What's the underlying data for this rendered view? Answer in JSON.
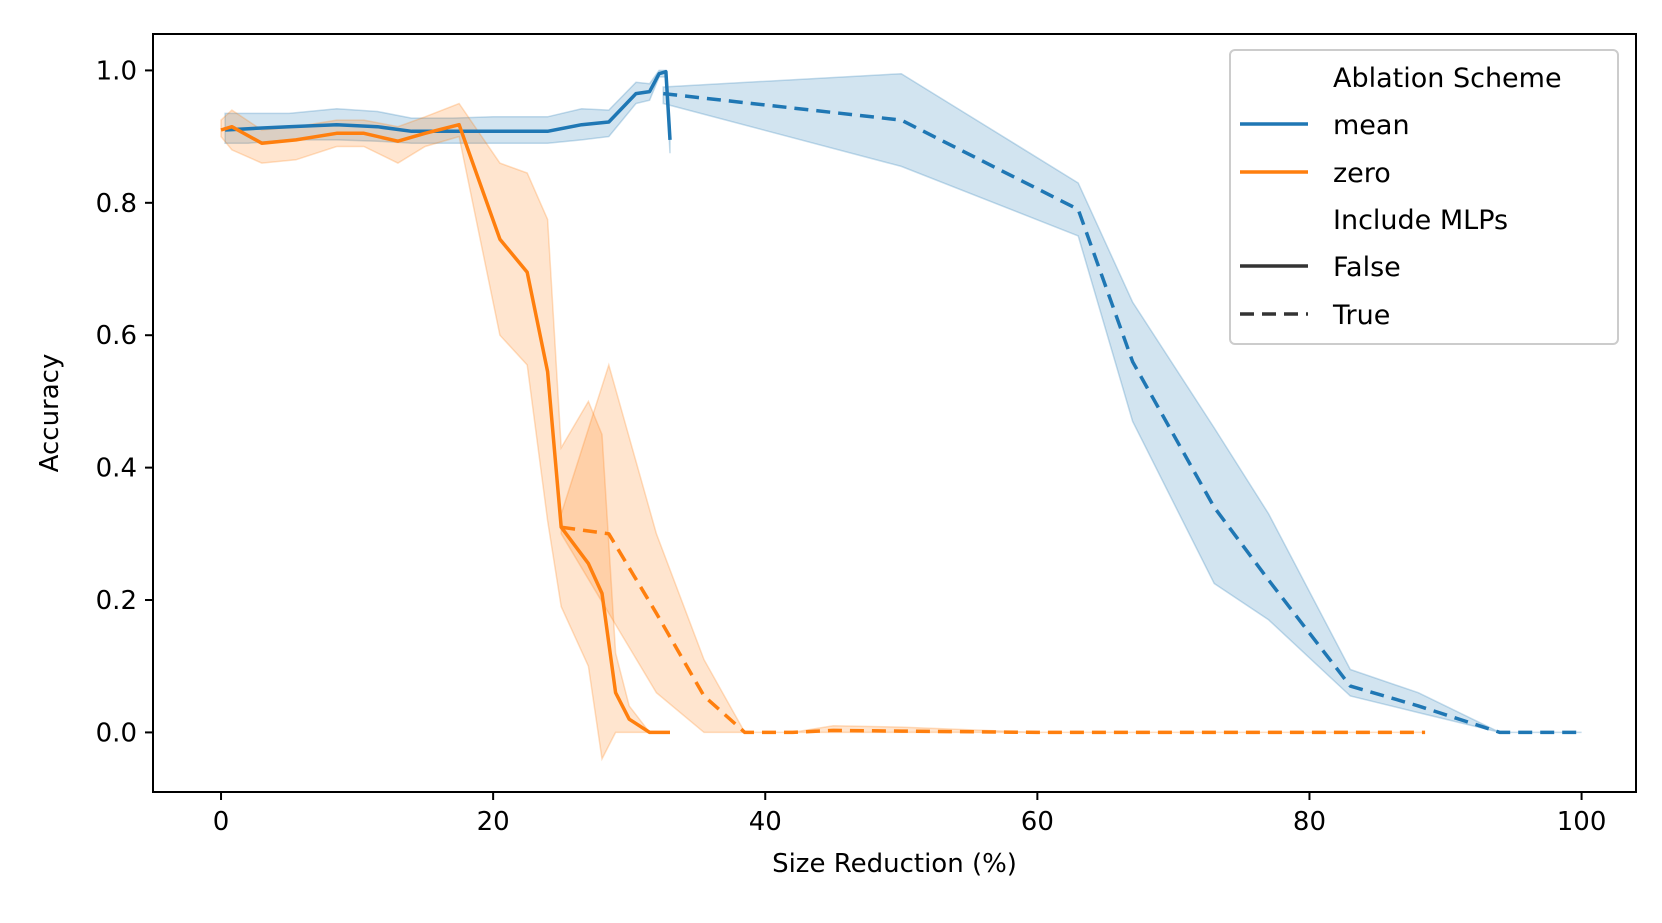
{
  "chart_data": {
    "type": "line",
    "title": "",
    "xlabel": "Size Reduction (%)",
    "ylabel": "Accuracy",
    "xlim": [
      -5,
      104
    ],
    "ylim": [
      -0.09,
      1.055
    ],
    "xticks": [
      0,
      20,
      40,
      60,
      80,
      100
    ],
    "xtick_labels": [
      "0",
      "20",
      "40",
      "60",
      "80",
      "100"
    ],
    "yticks": [
      0.0,
      0.2,
      0.4,
      0.6,
      0.8,
      1.0
    ],
    "ytick_labels": [
      "0.0",
      "0.2",
      "0.4",
      "0.6",
      "0.8",
      "1.0"
    ],
    "grid": false,
    "legend": {
      "position": "top-right",
      "hue_title": "Ablation Scheme",
      "style_title": "Include MLPs",
      "entries": [
        {
          "label": "mean",
          "color": "#1f77b4",
          "dash": "solid"
        },
        {
          "label": "zero",
          "color": "#ff7f0e",
          "dash": "solid"
        },
        {
          "label": "False",
          "color": "#333333",
          "dash": "solid"
        },
        {
          "label": "True",
          "color": "#333333",
          "dash": "dashed"
        }
      ]
    },
    "series": [
      {
        "name": "mean, Include MLPs = False",
        "color": "#1f77b4",
        "dash": "solid",
        "x": [
          0.3,
          2,
          5,
          8.5,
          11.5,
          14,
          17,
          20,
          24,
          26.5,
          28.5,
          30.5,
          31.5,
          32.2,
          32.7,
          33.0
        ],
        "y": [
          0.91,
          0.912,
          0.915,
          0.918,
          0.915,
          0.908,
          0.908,
          0.908,
          0.908,
          0.918,
          0.922,
          0.965,
          0.968,
          0.995,
          0.998,
          0.895
        ],
        "lower": [
          0.89,
          0.89,
          0.895,
          0.895,
          0.893,
          0.89,
          0.89,
          0.89,
          0.89,
          0.895,
          0.9,
          0.95,
          0.955,
          0.99,
          0.99,
          0.875
        ],
        "upper": [
          0.935,
          0.935,
          0.935,
          0.942,
          0.938,
          0.928,
          0.928,
          0.93,
          0.93,
          0.942,
          0.94,
          0.982,
          0.98,
          1.0,
          1.0,
          0.915
        ]
      },
      {
        "name": "mean, Include MLPs = True",
        "color": "#1f77b4",
        "dash": "dashed",
        "x": [
          32.5,
          50,
          63,
          67,
          73,
          77,
          83,
          88,
          94,
          100
        ],
        "y": [
          0.965,
          0.925,
          0.79,
          0.56,
          0.34,
          0.23,
          0.07,
          0.04,
          0.0,
          0.0
        ],
        "lower": [
          0.95,
          0.855,
          0.75,
          0.47,
          0.225,
          0.17,
          0.055,
          0.03,
          0.0,
          0.0
        ],
        "upper": [
          0.975,
          0.995,
          0.83,
          0.65,
          0.46,
          0.33,
          0.095,
          0.06,
          0.0,
          0.0
        ]
      },
      {
        "name": "zero, Include MLPs = False",
        "color": "#ff7f0e",
        "dash": "solid",
        "x": [
          0,
          0.8,
          3,
          5.5,
          8.5,
          10.5,
          13,
          15,
          17.5,
          20.5,
          22.5,
          24,
          25,
          27,
          28,
          29,
          30,
          31.5,
          33
        ],
        "y": [
          0.91,
          0.915,
          0.89,
          0.895,
          0.905,
          0.905,
          0.893,
          0.905,
          0.918,
          0.745,
          0.695,
          0.545,
          0.31,
          0.255,
          0.21,
          0.06,
          0.02,
          0.0,
          0.0
        ],
        "lower": [
          0.9,
          0.88,
          0.86,
          0.865,
          0.885,
          0.885,
          0.86,
          0.885,
          0.9,
          0.6,
          0.555,
          0.32,
          0.19,
          0.1,
          -0.04,
          0.0,
          0.0,
          0.0,
          0.0
        ],
        "upper": [
          0.925,
          0.94,
          0.91,
          0.915,
          0.925,
          0.925,
          0.915,
          0.93,
          0.95,
          0.86,
          0.845,
          0.775,
          0.43,
          0.5,
          0.45,
          0.12,
          0.04,
          0.0,
          0.0
        ]
      },
      {
        "name": "zero, Include MLPs = True",
        "color": "#ff7f0e",
        "dash": "dashed",
        "x": [
          25,
          28.5,
          32,
          35.5,
          38.5,
          42,
          45,
          50,
          60,
          70,
          80,
          88.5
        ],
        "y": [
          0.31,
          0.3,
          0.18,
          0.055,
          0.0,
          0.0,
          0.003,
          0.002,
          0.0,
          0.0,
          0.0,
          0.0
        ],
        "lower": [
          0.3,
          0.18,
          0.06,
          0.0,
          0.0,
          0.0,
          0.0,
          0.0,
          0.0,
          0.0,
          0.0,
          0.0
        ],
        "upper": [
          0.33,
          0.555,
          0.3,
          0.11,
          0.0,
          0.0,
          0.01,
          0.008,
          0.0,
          0.0,
          0.0,
          0.0
        ]
      }
    ]
  }
}
